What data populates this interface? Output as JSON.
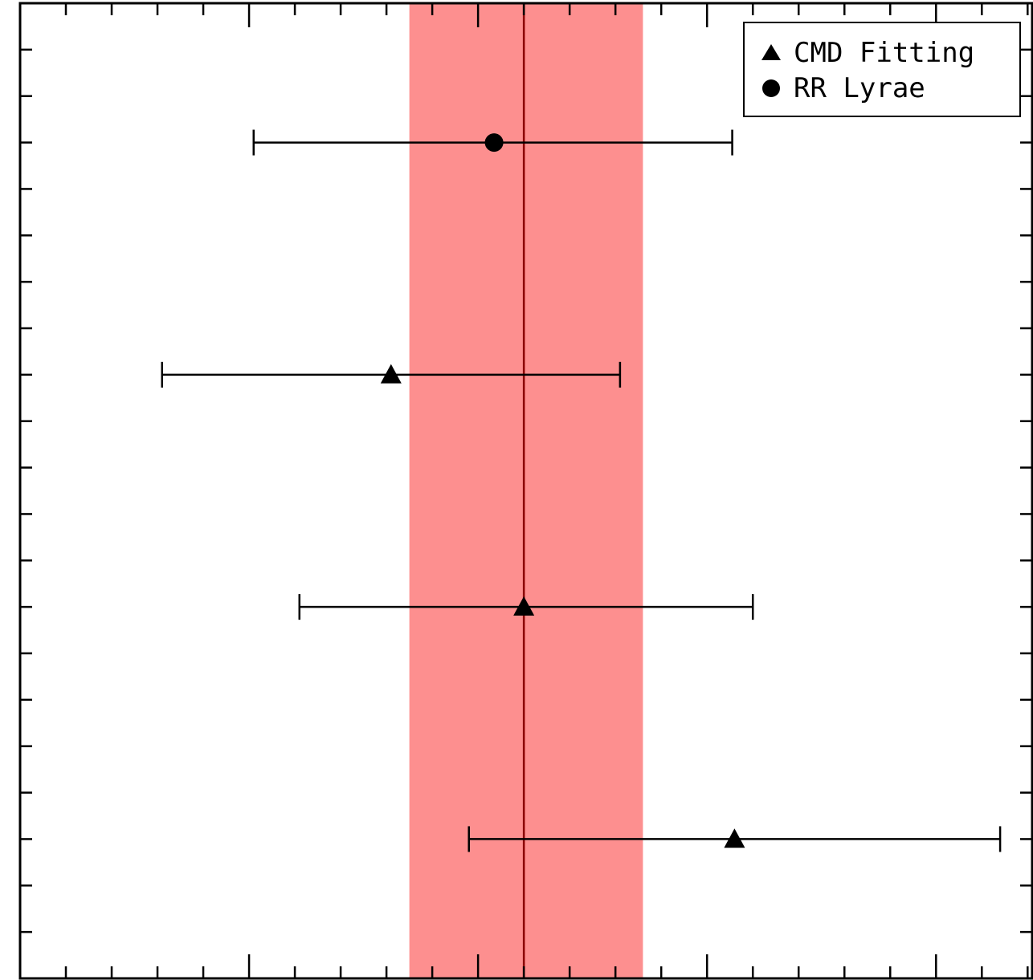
{
  "chart_data": {
    "type": "scatter",
    "title": "",
    "xlabel": "",
    "ylabel": "",
    "x_tick_labels": [],
    "y_tick_labels": [],
    "xlim": [
      0,
      22.1
    ],
    "ylim": [
      0,
      21
    ],
    "grid": false,
    "legend_position": "top-right",
    "legend": [
      {
        "label": "CMD Fitting",
        "marker": "triangle"
      },
      {
        "label": "RR Lyrae",
        "marker": "circle"
      }
    ],
    "reference": {
      "value": 11.0,
      "band": [
        8.5,
        13.6
      ],
      "line_color": "#8b0000",
      "band_color": "#fd8f8f"
    },
    "series": [
      {
        "name": "RR Lyrae",
        "marker": "circle",
        "points": [
          {
            "y": 18,
            "x": 10.35,
            "xerr_low": 5.25,
            "xerr_high": 5.2
          }
        ]
      },
      {
        "name": "CMD Fitting",
        "marker": "triangle",
        "points": [
          {
            "y": 13,
            "x": 8.1,
            "xerr_low": 5.0,
            "xerr_high": 5.0
          },
          {
            "y": 8,
            "x": 11.0,
            "xerr_low": 4.9,
            "xerr_high": 5.0
          },
          {
            "y": 3,
            "x": 15.6,
            "xerr_low": 5.8,
            "xerr_high": 5.8
          }
        ]
      }
    ],
    "colors": {
      "axes": "#000000",
      "markers": "#000000"
    }
  }
}
